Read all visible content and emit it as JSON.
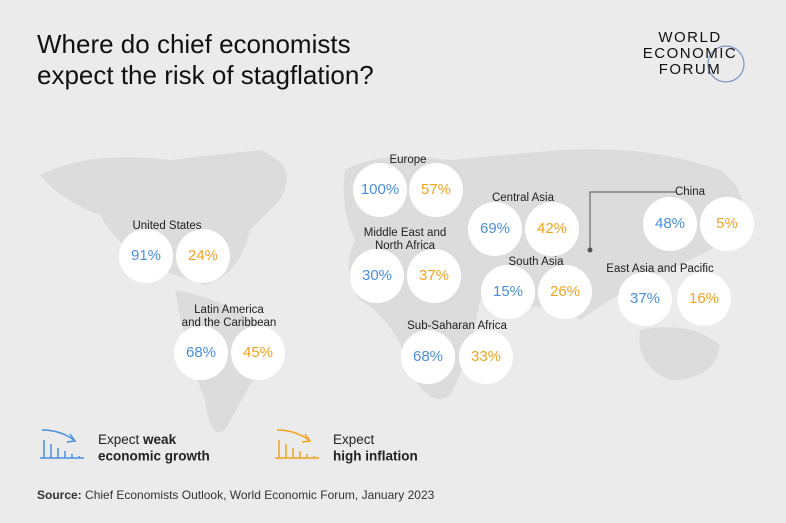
{
  "header": {
    "title": [
      "Where do chief economists",
      "expect the risk of stagflation?"
    ]
  },
  "logo": [
    "WORLD",
    "ECONOMIC",
    "FORUM"
  ],
  "regions": [
    {
      "name": [
        "Europe"
      ],
      "growth": "100%",
      "inflation": "57%"
    },
    {
      "name": [
        "Central Asia"
      ],
      "growth": "69%",
      "inflation": "42%"
    },
    {
      "name": [
        "China"
      ],
      "growth": "48%",
      "inflation": "5%"
    },
    {
      "name": [
        "United States"
      ],
      "growth": "91%",
      "inflation": "24%"
    },
    {
      "name": [
        "Middle East and",
        "North Africa"
      ],
      "growth": "30%",
      "inflation": "37%"
    },
    {
      "name": [
        "South Asia"
      ],
      "growth": "15%",
      "inflation": "26%"
    },
    {
      "name": [
        "East Asia and Pacific"
      ],
      "growth": "37%",
      "inflation": "16%"
    },
    {
      "name": [
        "Latin America",
        "and the Caribbean"
      ],
      "growth": "68%",
      "inflation": "45%"
    },
    {
      "name": [
        "Sub-Saharan Africa"
      ],
      "growth": "68%",
      "inflation": "33%"
    }
  ],
  "legend": [
    {
      "lead": "Expect",
      "bold": [
        "weak",
        "economic growth"
      ],
      "color": "#4a8fdc"
    },
    {
      "lead": "Expect",
      "bold": [
        "",
        "high inflation"
      ],
      "color": "#f0a323"
    }
  ],
  "source": {
    "label": "Source:",
    "text": "Chief Economists Outlook, World Economic Forum, January 2023"
  }
}
